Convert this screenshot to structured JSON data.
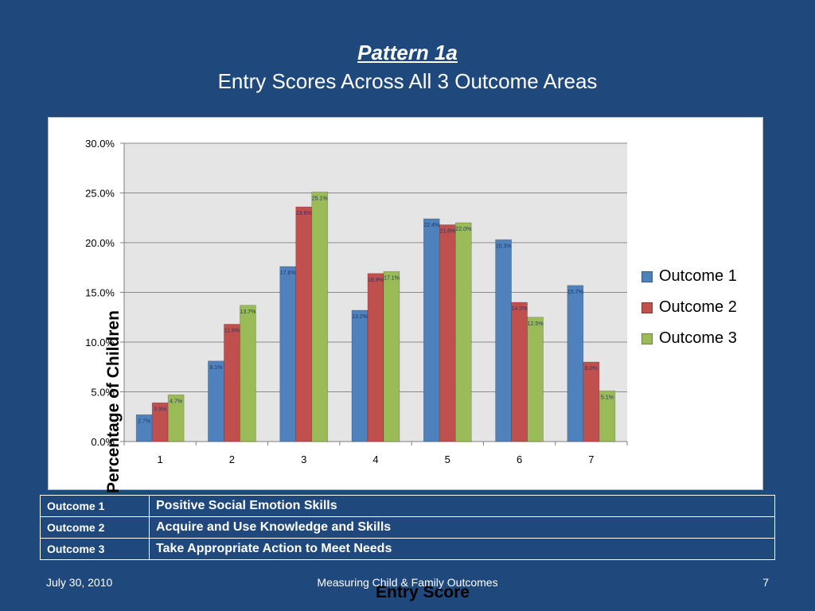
{
  "slide": {
    "title_line1": "Pattern 1a",
    "title_line2": "Entry Scores Across All 3 Outcome Areas",
    "footer_date": "July 30, 2010",
    "footer_center": "Measuring Child & Family Outcomes",
    "footer_page": "7"
  },
  "colors": {
    "background": "#1f497d",
    "series": [
      "#4f81bd",
      "#c0504d",
      "#9bbb59"
    ],
    "plot_area": "#e5e5e5"
  },
  "chart_data": {
    "type": "bar",
    "title": "",
    "xlabel": "Entry Score",
    "ylabel": "Percentage of Children",
    "categories": [
      "1",
      "2",
      "3",
      "4",
      "5",
      "6",
      "7"
    ],
    "series": [
      {
        "name": "Outcome 1",
        "values": [
          2.7,
          8.1,
          17.6,
          13.2,
          22.4,
          20.3,
          15.7
        ]
      },
      {
        "name": "Outcome 2",
        "values": [
          3.9,
          11.8,
          23.6,
          16.9,
          21.8,
          14.0,
          8.0
        ]
      },
      {
        "name": "Outcome 3",
        "values": [
          4.7,
          13.7,
          25.1,
          17.1,
          22.0,
          12.5,
          5.1
        ]
      }
    ],
    "ylim": [
      0,
      30
    ],
    "yticks": [
      "0.0%",
      "5.0%",
      "10.0%",
      "15.0%",
      "20.0%",
      "25.0%",
      "30.0%"
    ],
    "value_format": "percent_1dp",
    "grid": true,
    "legend_position": "right"
  },
  "outcomes_table": [
    {
      "label": "Outcome 1",
      "description": "Positive Social Emotion Skills"
    },
    {
      "label": "Outcome 2",
      "description": "Acquire and Use Knowledge and Skills"
    },
    {
      "label": "Outcome 3",
      "description": "Take Appropriate Action to Meet Needs"
    }
  ]
}
